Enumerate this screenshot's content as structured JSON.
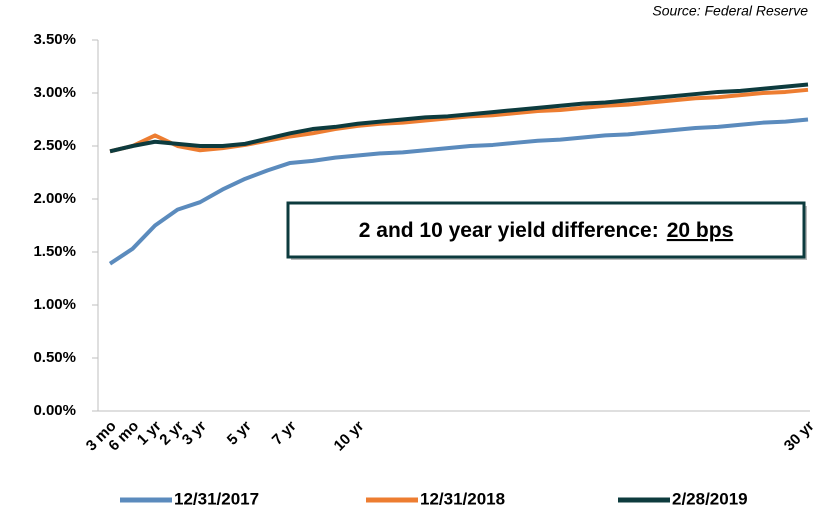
{
  "chart_data": {
    "type": "line",
    "source": "Source: Federal Reserve",
    "annotation": {
      "text": "2 and 10 year yield difference:",
      "value": "20 bps"
    },
    "categories": [
      "3 mo",
      "6 mo",
      "1 yr",
      "2 yr",
      "3 yr",
      null,
      "5 yr",
      null,
      "7 yr",
      null,
      null,
      "10 yr",
      null,
      null,
      null,
      null,
      null,
      null,
      null,
      null,
      null,
      null,
      null,
      null,
      null,
      null,
      null,
      null,
      null,
      null,
      null,
      "30 yr"
    ],
    "series": [
      {
        "name": "12/31/2017",
        "color": "#5b8bbd",
        "values": [
          1.39,
          1.53,
          1.75,
          1.9,
          1.97,
          2.09,
          2.19,
          2.27,
          2.34,
          2.36,
          2.39,
          2.41,
          2.43,
          2.44,
          2.46,
          2.48,
          2.5,
          2.51,
          2.53,
          2.55,
          2.56,
          2.58,
          2.6,
          2.61,
          2.63,
          2.65,
          2.67,
          2.68,
          2.7,
          2.72,
          2.73,
          2.75
        ]
      },
      {
        "name": "12/31/2018",
        "color": "#ed7d31",
        "values": [
          2.45,
          2.5,
          2.6,
          2.5,
          2.46,
          2.48,
          2.51,
          2.55,
          2.59,
          2.62,
          2.66,
          2.69,
          2.71,
          2.72,
          2.74,
          2.76,
          2.78,
          2.79,
          2.81,
          2.83,
          2.84,
          2.86,
          2.88,
          2.89,
          2.91,
          2.93,
          2.95,
          2.96,
          2.98,
          3.0,
          3.01,
          3.03
        ]
      },
      {
        "name": "2/28/2019",
        "color": "#0d3b3e",
        "values": [
          2.45,
          2.5,
          2.54,
          2.52,
          2.5,
          2.5,
          2.52,
          2.57,
          2.62,
          2.66,
          2.68,
          2.71,
          2.73,
          2.75,
          2.77,
          2.78,
          2.8,
          2.82,
          2.84,
          2.86,
          2.88,
          2.9,
          2.91,
          2.93,
          2.95,
          2.97,
          2.99,
          3.01,
          3.02,
          3.04,
          3.06,
          3.08
        ]
      }
    ],
    "ylim": [
      0,
      3.5
    ],
    "yticks": [
      {
        "value": 0,
        "label": "0.00%"
      },
      {
        "value": 0.5,
        "label": "0.50%"
      },
      {
        "value": 1,
        "label": "1.00%"
      },
      {
        "value": 1.5,
        "label": "1.50%"
      },
      {
        "value": 2,
        "label": "2.00%"
      },
      {
        "value": 2.5,
        "label": "2.50%"
      },
      {
        "value": 3,
        "label": "3.00%"
      },
      {
        "value": 3.5,
        "label": "3.50%"
      }
    ],
    "legend": "bottom"
  }
}
